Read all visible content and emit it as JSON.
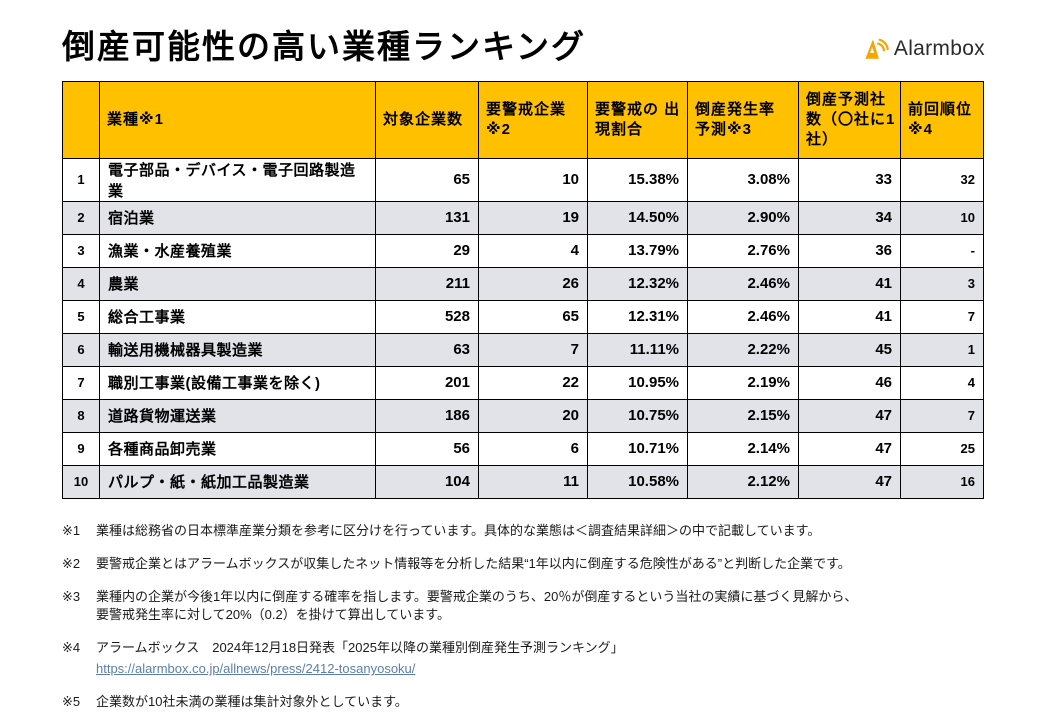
{
  "title": "倒産可能性の高い業種ランキング",
  "logo": {
    "brand": "Alarmbox",
    "icon": "alarm-sound-icon"
  },
  "colors": {
    "header_bg": "#FFC000",
    "stripe": "#E2E2E9",
    "link": "#5B7FA8",
    "logo_orange": "#F7A600"
  },
  "table": {
    "headers": {
      "rank": "",
      "industry": "業種※1",
      "companies": "対象企業数",
      "warning": "要警戒企業 ※2",
      "ratio": "要警戒の 出現割合",
      "rate": "倒産発生率 予測※3",
      "predicted": "倒産予測社数（〇社に1社）",
      "prev": "前回順位※4"
    },
    "rows": [
      {
        "rank": "1",
        "industry": "電子部品・デバイス・電子回路製造業",
        "companies": "65",
        "warning": "10",
        "ratio": "15.38%",
        "rate": "3.08%",
        "predicted": "33",
        "prev": "32"
      },
      {
        "rank": "2",
        "industry": "宿泊業",
        "companies": "131",
        "warning": "19",
        "ratio": "14.50%",
        "rate": "2.90%",
        "predicted": "34",
        "prev": "10"
      },
      {
        "rank": "3",
        "industry": "漁業・水産養殖業",
        "companies": "29",
        "warning": "4",
        "ratio": "13.79%",
        "rate": "2.76%",
        "predicted": "36",
        "prev": "-"
      },
      {
        "rank": "4",
        "industry": "農業",
        "companies": "211",
        "warning": "26",
        "ratio": "12.32%",
        "rate": "2.46%",
        "predicted": "41",
        "prev": "3"
      },
      {
        "rank": "5",
        "industry": "総合工事業",
        "companies": "528",
        "warning": "65",
        "ratio": "12.31%",
        "rate": "2.46%",
        "predicted": "41",
        "prev": "7"
      },
      {
        "rank": "6",
        "industry": "輸送用機械器具製造業",
        "companies": "63",
        "warning": "7",
        "ratio": "11.11%",
        "rate": "2.22%",
        "predicted": "45",
        "prev": "1"
      },
      {
        "rank": "7",
        "industry": "職別工事業(設備工事業を除く)",
        "companies": "201",
        "warning": "22",
        "ratio": "10.95%",
        "rate": "2.19%",
        "predicted": "46",
        "prev": "4"
      },
      {
        "rank": "8",
        "industry": "道路貨物運送業",
        "companies": "186",
        "warning": "20",
        "ratio": "10.75%",
        "rate": "2.15%",
        "predicted": "47",
        "prev": "7"
      },
      {
        "rank": "9",
        "industry": "各種商品卸売業",
        "companies": "56",
        "warning": "6",
        "ratio": "10.71%",
        "rate": "2.14%",
        "predicted": "47",
        "prev": "25"
      },
      {
        "rank": "10",
        "industry": "パルプ・紙・紙加工品製造業",
        "companies": "104",
        "warning": "11",
        "ratio": "10.58%",
        "rate": "2.12%",
        "predicted": "47",
        "prev": "16"
      }
    ]
  },
  "footnotes": [
    {
      "label": "※1",
      "lines": [
        "業種は総務省の日本標準産業分類を参考に区分けを行っています。具体的な業態は＜調査結果詳細＞の中で記載しています。"
      ]
    },
    {
      "label": "※2",
      "lines": [
        "要警戒企業とはアラームボックスが収集したネット情報等を分析した結果“1年以内に倒産する危険性がある”と判断した企業です。"
      ]
    },
    {
      "label": "※3",
      "lines": [
        "業種内の企業が今後1年以内に倒産する確率を指します。要警戒企業のうち、20％が倒産するという当社の実績に基づく見解から、",
        "要警戒発生率に対して20%（0.2）を掛けて算出しています。"
      ]
    },
    {
      "label": "※4",
      "lines": [
        "アラームボックス　2024年12月18日発表「2025年以降の業種別倒産発生予測ランキング」"
      ],
      "link": "https://alarmbox.co.jp/allnews/press/2412-tosanyosoku/"
    },
    {
      "label": "※5",
      "lines": [
        "企業数が10社未満の業種は集計対象外としています。"
      ]
    }
  ]
}
